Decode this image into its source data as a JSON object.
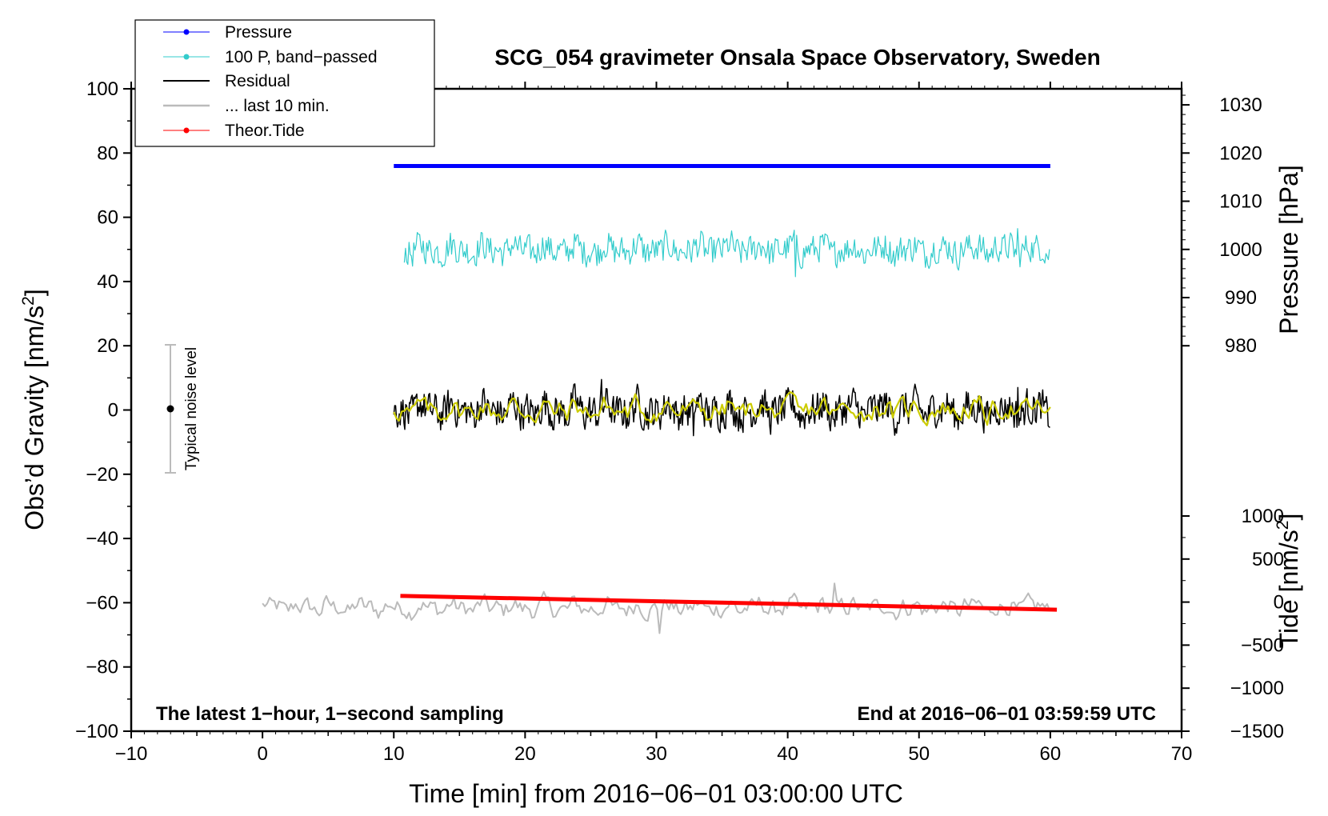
{
  "chart_data": {
    "type": "line",
    "title": "SCG_054 gravimeter Onsala Space Observatory, Sweden",
    "xlabel": "Time [min] from 2016−06−01 03:00:00 UTC",
    "ylabel_left": "Obs’d Gravity [nm/s",
    "ylabel_left_sup": "2",
    "ylabel_left_end": "]",
    "ylabel_right_pressure": "Pressure [hPa]",
    "ylabel_right_tide": "Tide [nm/s",
    "ylabel_right_tide_sup": "2",
    "ylabel_right_tide_end": "]",
    "xlim": [
      -10,
      70
    ],
    "ylim": [
      -100,
      100
    ],
    "pressure_axis_range": [
      980,
      1030
    ],
    "tide_axis_range": [
      -1500,
      1000
    ],
    "x_ticks": [
      -10,
      0,
      10,
      20,
      30,
      40,
      50,
      60,
      70
    ],
    "x_tick_labels": [
      "−10",
      "0",
      "10",
      "20",
      "30",
      "40",
      "50",
      "60",
      "70"
    ],
    "y_ticks": [
      -100,
      -80,
      -60,
      -40,
      -20,
      0,
      20,
      40,
      60,
      80,
      100
    ],
    "y_tick_labels": [
      "−100",
      "−80",
      "−60",
      "−40",
      "−20",
      "0",
      "20",
      "40",
      "60",
      "80",
      "100"
    ],
    "pressure_ticks": [
      980,
      990,
      1000,
      1010,
      1020,
      1030
    ],
    "pressure_tick_labels": [
      "980",
      "990",
      "1000",
      "1010",
      "1020",
      "1030"
    ],
    "tide_ticks": [
      -1500,
      -1000,
      -500,
      0,
      500,
      1000
    ],
    "tide_tick_labels": [
      "−1500",
      "−1000",
      "−500",
      "0",
      "500",
      "1000"
    ],
    "legend": [
      {
        "label": "Pressure",
        "color": "#0000ff",
        "marker": true
      },
      {
        "label": "100 P, band−passed",
        "color": "#33cccc",
        "marker": true
      },
      {
        "label": "Residual",
        "color": "#000000",
        "marker": false
      },
      {
        "label": "... last 10 min.",
        "color": "#bbbbbb",
        "marker": false
      },
      {
        "label": "Theor.Tide",
        "color": "#ff0000",
        "marker": true
      }
    ],
    "annotation_left": "The latest 1−hour, 1−second sampling",
    "annotation_right": "End at 2016−06−01 03:59:59 UTC",
    "noise_label": "Typical noise level",
    "noise_bar": {
      "x": -7,
      "center": 0,
      "low": -20,
      "high": 20
    },
    "series": [
      {
        "name": "Pressure",
        "axis": "pressure",
        "color": "#0000ff",
        "x": [
          10,
          60
        ],
        "values": [
          1017.3,
          1017.3
        ]
      },
      {
        "name": "100 P, band−passed",
        "axis": "gravity",
        "color": "#33cccc",
        "x": [
          10.8,
          60
        ],
        "center": 50,
        "amplitude_typical": 3,
        "extrema": [
          {
            "x": 40.6,
            "y": 41.5
          },
          {
            "x": 40.5,
            "y": 56
          },
          {
            "x": 57.5,
            "y": 56.5
          }
        ]
      },
      {
        "name": "Residual",
        "axis": "gravity",
        "color": "#000000",
        "x": [
          10,
          60
        ],
        "center": 0,
        "amplitude_typical": 4,
        "extrema": [
          {
            "x": 25.8,
            "y": 9.5
          },
          {
            "x": 32.8,
            "y": -8
          },
          {
            "x": 57.5,
            "y": 7
          }
        ]
      },
      {
        "name": "Residual (smoothed)",
        "axis": "gravity",
        "color": "#cccc00",
        "x": [
          10,
          60
        ],
        "center": 0,
        "amplitude_typical": 3
      },
      {
        "name": "... last 10 min.",
        "axis": "gravity",
        "color": "#bbbbbb",
        "x": [
          0,
          60
        ],
        "center": -61.5,
        "amplitude_typical": 2.5,
        "extrema": [
          {
            "x": 30.3,
            "y": -69.5
          },
          {
            "x": 43.6,
            "y": -54
          }
        ]
      },
      {
        "name": "Theor.Tide",
        "axis": "tide",
        "color": "#ff0000",
        "x": [
          10.5,
          60.5
        ],
        "values": [
          72,
          -88
        ]
      }
    ]
  }
}
